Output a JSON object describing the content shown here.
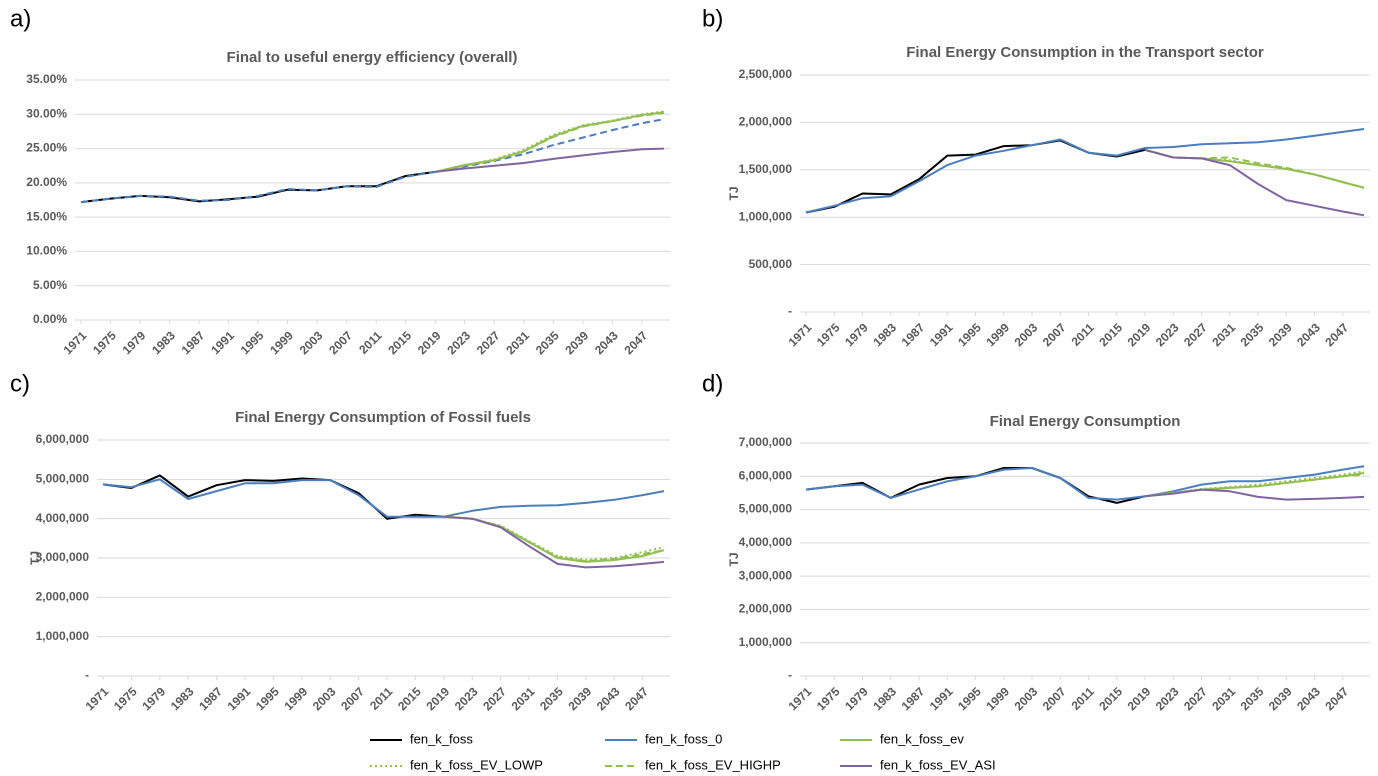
{
  "chart_data": [
    {
      "type": "line",
      "panel": "a)",
      "title": "Final to useful energy efficiency (overall)",
      "x": [
        1971,
        1975,
        1979,
        1983,
        1987,
        1991,
        1995,
        1999,
        2003,
        2007,
        2011,
        2015,
        2019,
        2023,
        2027,
        2031,
        2035,
        2039,
        2043,
        2047,
        2050
      ],
      "xlim": [
        1971,
        2050
      ],
      "xticks": [
        1971,
        1975,
        1979,
        1983,
        1987,
        1991,
        1995,
        1999,
        2003,
        2007,
        2011,
        2015,
        2019,
        2023,
        2027,
        2031,
        2035,
        2039,
        2043,
        2047
      ],
      "ylim": [
        0,
        35
      ],
      "yticks": [
        {
          "value": 0,
          "label": "0.00%"
        },
        {
          "value": 5,
          "label": "5.00%"
        },
        {
          "value": 10,
          "label": "10.00%"
        },
        {
          "value": 15,
          "label": "15.00%"
        },
        {
          "value": 20,
          "label": "20.00%"
        },
        {
          "value": 25,
          "label": "25.00%"
        },
        {
          "value": 30,
          "label": "30.00%"
        },
        {
          "value": 35,
          "label": "35.00%"
        }
      ],
      "grid": true,
      "series": [
        {
          "name": "fen_k_foss",
          "color": "#000000",
          "dash": "solid",
          "values": [
            17.2,
            17.7,
            18.1,
            17.9,
            17.3,
            17.6,
            18.0,
            19.0,
            18.9,
            19.5,
            19.5,
            21.0,
            21.6,
            null,
            null,
            null,
            null,
            null,
            null,
            null,
            null
          ]
        },
        {
          "name": "fen_k_foss_0",
          "color": "#4a7ebf",
          "dash": "dashed",
          "values": [
            17.2,
            17.7,
            18.1,
            18.0,
            17.4,
            17.5,
            18.1,
            19.1,
            18.9,
            19.5,
            19.4,
            20.9,
            21.6,
            22.4,
            23.2,
            24.2,
            25.5,
            26.6,
            27.7,
            28.7,
            29.3
          ]
        },
        {
          "name": "fen_k_foss_ev",
          "color": "#92c050",
          "dash": "solid",
          "values": [
            null,
            null,
            null,
            null,
            null,
            null,
            null,
            null,
            null,
            null,
            null,
            null,
            21.6,
            22.6,
            23.3,
            24.6,
            26.8,
            28.3,
            29.0,
            29.9,
            30.3
          ]
        },
        {
          "name": "fen_k_foss_EV_LOWP",
          "color": "#92c050",
          "dash": "dotted",
          "values": [
            null,
            null,
            null,
            null,
            null,
            null,
            null,
            null,
            null,
            null,
            null,
            null,
            21.6,
            22.6,
            23.4,
            24.8,
            27.0,
            28.4,
            29.1,
            30.0,
            30.4
          ]
        },
        {
          "name": "fen_k_foss_EV_HIGHP",
          "color": "#92c050",
          "dash": "dashed",
          "values": [
            null,
            null,
            null,
            null,
            null,
            null,
            null,
            null,
            null,
            null,
            null,
            null,
            21.6,
            22.5,
            23.3,
            24.6,
            26.7,
            28.2,
            29.0,
            29.8,
            30.2
          ]
        },
        {
          "name": "fen_k_foss_EV_ASI",
          "color": "#8064a2",
          "dash": "solid",
          "values": [
            null,
            null,
            null,
            null,
            null,
            null,
            null,
            null,
            null,
            null,
            null,
            null,
            21.6,
            22.1,
            22.5,
            22.9,
            23.5,
            24.0,
            24.5,
            24.9,
            25.0
          ]
        }
      ]
    },
    {
      "type": "line",
      "panel": "b)",
      "title": "Final Energy Consumption in the Transport sector",
      "ylabel": "TJ",
      "x": [
        1971,
        1975,
        1979,
        1983,
        1987,
        1991,
        1995,
        1999,
        2003,
        2007,
        2011,
        2015,
        2019,
        2023,
        2027,
        2031,
        2035,
        2039,
        2043,
        2047,
        2050
      ],
      "xlim": [
        1971,
        2050
      ],
      "xticks": [
        1971,
        1975,
        1979,
        1983,
        1987,
        1991,
        1995,
        1999,
        2003,
        2007,
        2011,
        2015,
        2019,
        2023,
        2027,
        2031,
        2035,
        2039,
        2043,
        2047
      ],
      "ylim": [
        0,
        2500000
      ],
      "yticks": [
        {
          "value": 0,
          "label": "-"
        },
        {
          "value": 500000,
          "label": "500,000"
        },
        {
          "value": 1000000,
          "label": "1,000,000"
        },
        {
          "value": 1500000,
          "label": "1,500,000"
        },
        {
          "value": 2000000,
          "label": "2,000,000"
        },
        {
          "value": 2500000,
          "label": "2,500,000"
        }
      ],
      "grid": true,
      "series": [
        {
          "name": "fen_k_foss",
          "color": "#000000",
          "dash": "solid",
          "values": [
            1050000,
            1110000,
            1250000,
            1240000,
            1400000,
            1650000,
            1660000,
            1750000,
            1760000,
            1810000,
            1680000,
            1640000,
            1710000,
            null,
            null,
            null,
            null,
            null,
            null,
            null,
            null
          ]
        },
        {
          "name": "fen_k_foss_0",
          "color": "#4a7ebf",
          "dash": "solid",
          "values": [
            1050000,
            1120000,
            1200000,
            1220000,
            1380000,
            1550000,
            1650000,
            1700000,
            1760000,
            1820000,
            1680000,
            1650000,
            1730000,
            1740000,
            1770000,
            1780000,
            1790000,
            1820000,
            1860000,
            1900000,
            1930000
          ]
        },
        {
          "name": "fen_k_foss_ev",
          "color": "#92c050",
          "dash": "solid",
          "values": [
            null,
            null,
            null,
            null,
            null,
            null,
            null,
            null,
            null,
            null,
            null,
            null,
            1710000,
            1630000,
            1620000,
            1590000,
            1550000,
            1510000,
            1450000,
            1370000,
            1310000
          ]
        },
        {
          "name": "fen_k_foss_EV_LOWP",
          "color": "#92c050",
          "dash": "dotted",
          "values": [
            null,
            null,
            null,
            null,
            null,
            null,
            null,
            null,
            null,
            null,
            null,
            null,
            1710000,
            1630000,
            1620000,
            1600000,
            1550000,
            1510000,
            1450000,
            1370000,
            1310000
          ]
        },
        {
          "name": "fen_k_foss_EV_HIGHP",
          "color": "#92c050",
          "dash": "dashed",
          "values": [
            null,
            null,
            null,
            null,
            null,
            null,
            null,
            null,
            null,
            null,
            null,
            null,
            1710000,
            1630000,
            1620000,
            1630000,
            1570000,
            1520000,
            1450000,
            1370000,
            1310000
          ]
        },
        {
          "name": "fen_k_foss_EV_ASI",
          "color": "#8064a2",
          "dash": "solid",
          "values": [
            null,
            null,
            null,
            null,
            null,
            null,
            null,
            null,
            null,
            null,
            null,
            null,
            1710000,
            1630000,
            1620000,
            1550000,
            1350000,
            1180000,
            1120000,
            1060000,
            1020000
          ]
        }
      ]
    },
    {
      "type": "line",
      "panel": "c)",
      "title": "Final Energy Consumption of Fossil fuels",
      "ylabel": "TJ",
      "x": [
        1971,
        1975,
        1979,
        1983,
        1987,
        1991,
        1995,
        1999,
        2003,
        2007,
        2011,
        2015,
        2019,
        2023,
        2027,
        2031,
        2035,
        2039,
        2043,
        2047,
        2050
      ],
      "xlim": [
        1971,
        2050
      ],
      "xticks": [
        1971,
        1975,
        1979,
        1983,
        1987,
        1991,
        1995,
        1999,
        2003,
        2007,
        2011,
        2015,
        2019,
        2023,
        2027,
        2031,
        2035,
        2039,
        2043,
        2047
      ],
      "ylim": [
        0,
        6000000
      ],
      "yticks": [
        {
          "value": 0,
          "label": "-"
        },
        {
          "value": 1000000,
          "label": "1,000,000"
        },
        {
          "value": 2000000,
          "label": "2,000,000"
        },
        {
          "value": 3000000,
          "label": "3,000,000"
        },
        {
          "value": 4000000,
          "label": "4,000,000"
        },
        {
          "value": 5000000,
          "label": "5,000,000"
        },
        {
          "value": 6000000,
          "label": "6,000,000"
        }
      ],
      "grid": true,
      "series": [
        {
          "name": "fen_k_foss",
          "color": "#000000",
          "dash": "solid",
          "values": [
            4870000,
            4780000,
            5100000,
            4560000,
            4850000,
            4980000,
            4960000,
            5020000,
            4980000,
            4650000,
            4000000,
            4100000,
            4050000,
            null,
            null,
            null,
            null,
            null,
            null,
            null,
            null
          ]
        },
        {
          "name": "fen_k_foss_0",
          "color": "#4a7ebf",
          "dash": "solid",
          "values": [
            4870000,
            4800000,
            5000000,
            4500000,
            4700000,
            4900000,
            4900000,
            4980000,
            4980000,
            4600000,
            4050000,
            4050000,
            4050000,
            4200000,
            4300000,
            4330000,
            4340000,
            4400000,
            4480000,
            4600000,
            4700000
          ]
        },
        {
          "name": "fen_k_foss_ev",
          "color": "#92c050",
          "dash": "solid",
          "values": [
            null,
            null,
            null,
            null,
            null,
            null,
            null,
            null,
            null,
            null,
            null,
            null,
            4050000,
            4000000,
            3800000,
            3400000,
            3000000,
            2900000,
            2950000,
            3050000,
            3200000
          ]
        },
        {
          "name": "fen_k_foss_EV_LOWP",
          "color": "#92c050",
          "dash": "dotted",
          "values": [
            null,
            null,
            null,
            null,
            null,
            null,
            null,
            null,
            null,
            null,
            null,
            null,
            4050000,
            4000000,
            3820000,
            3430000,
            3050000,
            2950000,
            3000000,
            3150000,
            3280000
          ]
        },
        {
          "name": "fen_k_foss_EV_HIGHP",
          "color": "#92c050",
          "dash": "dashed",
          "values": [
            null,
            null,
            null,
            null,
            null,
            null,
            null,
            null,
            null,
            null,
            null,
            null,
            4050000,
            4000000,
            3800000,
            3410000,
            3020000,
            2920000,
            2980000,
            3100000,
            3200000
          ]
        },
        {
          "name": "fen_k_foss_EV_ASI",
          "color": "#8064a2",
          "dash": "solid",
          "values": [
            null,
            null,
            null,
            null,
            null,
            null,
            null,
            null,
            null,
            null,
            null,
            null,
            4050000,
            4000000,
            3780000,
            3300000,
            2850000,
            2760000,
            2790000,
            2850000,
            2900000
          ]
        }
      ]
    },
    {
      "type": "line",
      "panel": "d)",
      "title": "Final Energy Consumption",
      "ylabel": "TJ",
      "x": [
        1971,
        1975,
        1979,
        1983,
        1987,
        1991,
        1995,
        1999,
        2003,
        2007,
        2011,
        2015,
        2019,
        2023,
        2027,
        2031,
        2035,
        2039,
        2043,
        2047,
        2050
      ],
      "xlim": [
        1971,
        2050
      ],
      "xticks": [
        1971,
        1975,
        1979,
        1983,
        1987,
        1991,
        1995,
        1999,
        2003,
        2007,
        2011,
        2015,
        2019,
        2023,
        2027,
        2031,
        2035,
        2039,
        2043,
        2047
      ],
      "ylim": [
        0,
        7000000
      ],
      "yticks": [
        {
          "value": 0,
          "label": "-"
        },
        {
          "value": 1000000,
          "label": "1,000,000"
        },
        {
          "value": 2000000,
          "label": "2,000,000"
        },
        {
          "value": 3000000,
          "label": "3,000,000"
        },
        {
          "value": 4000000,
          "label": "4,000,000"
        },
        {
          "value": 5000000,
          "label": "5,000,000"
        },
        {
          "value": 6000000,
          "label": "6,000,000"
        },
        {
          "value": 7000000,
          "label": "7,000,000"
        }
      ],
      "grid": true,
      "series": [
        {
          "name": "fen_k_foss",
          "color": "#000000",
          "dash": "solid",
          "values": [
            5600000,
            5700000,
            5800000,
            5350000,
            5750000,
            5950000,
            6000000,
            6250000,
            6250000,
            5950000,
            5400000,
            5200000,
            5400000,
            null,
            null,
            null,
            null,
            null,
            null,
            null,
            null
          ]
        },
        {
          "name": "fen_k_foss_0",
          "color": "#4a7ebf",
          "dash": "solid",
          "values": [
            5600000,
            5700000,
            5750000,
            5350000,
            5600000,
            5850000,
            6000000,
            6200000,
            6250000,
            5950000,
            5350000,
            5300000,
            5400000,
            5550000,
            5750000,
            5850000,
            5850000,
            5950000,
            6050000,
            6200000,
            6300000
          ]
        },
        {
          "name": "fen_k_foss_ev",
          "color": "#92c050",
          "dash": "solid",
          "values": [
            null,
            null,
            null,
            null,
            null,
            null,
            null,
            null,
            null,
            null,
            null,
            null,
            5400000,
            5500000,
            5600000,
            5650000,
            5700000,
            5800000,
            5900000,
            6000000,
            6100000
          ]
        },
        {
          "name": "fen_k_foss_EV_LOWP",
          "color": "#92c050",
          "dash": "dotted",
          "values": [
            null,
            null,
            null,
            null,
            null,
            null,
            null,
            null,
            null,
            null,
            null,
            null,
            5400000,
            5500000,
            5620000,
            5680000,
            5750000,
            5850000,
            5950000,
            6050000,
            6150000
          ]
        },
        {
          "name": "fen_k_foss_EV_HIGHP",
          "color": "#92c050",
          "dash": "dashed",
          "values": [
            null,
            null,
            null,
            null,
            null,
            null,
            null,
            null,
            null,
            null,
            null,
            null,
            5400000,
            5500000,
            5600000,
            5650000,
            5700000,
            5800000,
            5900000,
            6000000,
            6050000
          ]
        },
        {
          "name": "fen_k_foss_EV_ASI",
          "color": "#8064a2",
          "dash": "solid",
          "values": [
            null,
            null,
            null,
            null,
            null,
            null,
            null,
            null,
            null,
            null,
            null,
            null,
            5400000,
            5480000,
            5600000,
            5550000,
            5380000,
            5300000,
            5320000,
            5350000,
            5380000
          ]
        }
      ]
    }
  ]
}
